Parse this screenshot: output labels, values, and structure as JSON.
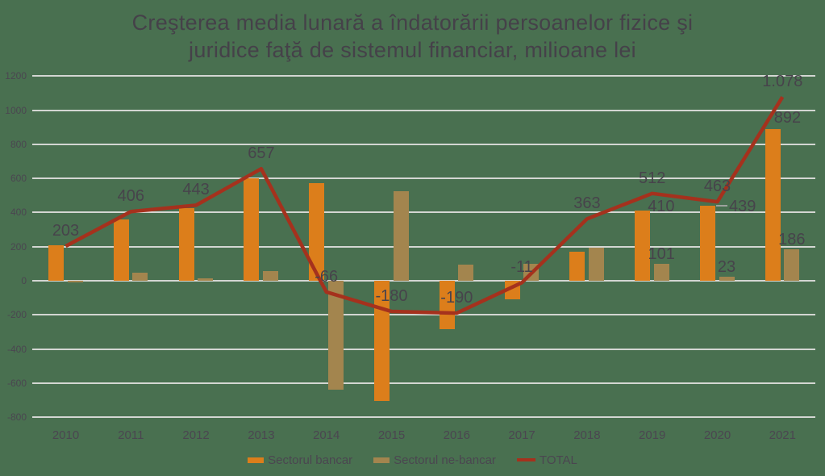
{
  "title": {
    "line1": "Creşterea media lunară a îndatorării persoanelor fizice şi",
    "line2": "juridice faţă de sistemul financiar, milioane lei"
  },
  "colors": {
    "background": "#497050",
    "grid": "#D3D6D2",
    "title_text": "#454149",
    "axis_text": "#4B4650",
    "label_text": "#47434B",
    "bancar": "#DC7E1B",
    "nebancar": "#A3854E",
    "total": "#A5311D",
    "leader": "#9DA29D"
  },
  "chart_data": {
    "type": "combo-bar-line",
    "title": "Creşterea media lunară a îndatorării persoanelor fizice şi juridice faţă de sistemul financiar, milioane lei",
    "categories": [
      "2010",
      "2011",
      "2012",
      "2013",
      "2014",
      "2015",
      "2016",
      "2017",
      "2018",
      "2019",
      "2020",
      "2021"
    ],
    "series": [
      {
        "name": "Sectorul bancar",
        "type": "bar",
        "color": "#DC7E1B",
        "values": [
          210,
          360,
          427,
          600,
          575,
          -705,
          -285,
          -110,
          170,
          410,
          439,
          892
        ],
        "labels": [
          null,
          null,
          null,
          null,
          null,
          null,
          null,
          null,
          null,
          "410",
          "439",
          "892"
        ]
      },
      {
        "name": "Sectorul ne-bancar",
        "type": "bar",
        "color": "#A3854E",
        "values": [
          -7,
          46,
          16,
          57,
          -641,
          525,
          95,
          99,
          193,
          101,
          23,
          186
        ],
        "labels": [
          null,
          null,
          null,
          null,
          null,
          null,
          null,
          null,
          null,
          "101",
          "23",
          "186"
        ]
      },
      {
        "name": "TOTAL",
        "type": "line",
        "color": "#A5311D",
        "values": [
          203,
          406,
          443,
          657,
          -66,
          -180,
          -190,
          -11,
          363,
          512,
          463,
          1078
        ],
        "labels": [
          "203",
          "406",
          "443",
          "657",
          "-66",
          "-180",
          "-190",
          "-11",
          "363",
          "512",
          "463",
          "1.078"
        ]
      }
    ],
    "y_axis": {
      "min": -800,
      "max": 1200,
      "step": 200,
      "tick_labels": [
        "1200",
        "1000",
        "800",
        "600",
        "400",
        "200",
        "0",
        "-200",
        "-400",
        "-600",
        "-800"
      ]
    },
    "grid": true,
    "legend_position": "bottom"
  }
}
